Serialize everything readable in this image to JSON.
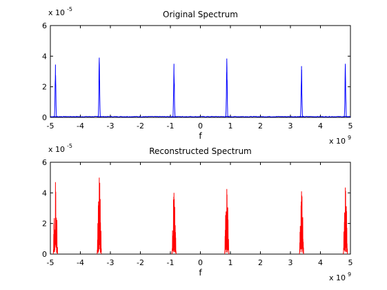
{
  "chart_data": [
    {
      "type": "line",
      "title": "Original Spectrum",
      "xlabel": "f",
      "ylabel": "",
      "x_multiplier": "x 10",
      "x_exponent": "9",
      "y_multiplier": "x 10",
      "y_exponent": "-5",
      "xlim": [
        -5,
        5
      ],
      "ylim": [
        0,
        6
      ],
      "x_ticks": [
        "-5",
        "-4",
        "-3",
        "-2",
        "-1",
        "0",
        "1",
        "2",
        "3",
        "4",
        "5"
      ],
      "y_ticks": [
        "0",
        "2",
        "4",
        "6"
      ],
      "grid": false,
      "line_color": "#0000ff",
      "baseline": 0.05,
      "peaks": [
        {
          "center": -4.83,
          "height": 3.45
        },
        {
          "center": -3.37,
          "height": 3.9
        },
        {
          "center": -0.88,
          "height": 3.5
        },
        {
          "center": 0.88,
          "height": 3.85
        },
        {
          "center": 3.37,
          "height": 3.35
        },
        {
          "center": 4.83,
          "height": 3.5
        }
      ]
    },
    {
      "type": "line",
      "title": "Reconstructed Spectrum",
      "xlabel": "f",
      "ylabel": "",
      "x_multiplier": "x 10",
      "x_exponent": "9",
      "y_multiplier": "x 10",
      "y_exponent": "-5",
      "xlim": [
        -5,
        5
      ],
      "ylim": [
        0,
        6
      ],
      "x_ticks": [
        "-5",
        "-4",
        "-3",
        "-2",
        "-1",
        "0",
        "1",
        "2",
        "3",
        "4",
        "5"
      ],
      "y_ticks": [
        "0",
        "2",
        "4",
        "6"
      ],
      "grid": false,
      "line_color": "#ff0000",
      "baseline": 0,
      "peaks": [
        {
          "center": -4.83,
          "height": 4.7
        },
        {
          "center": -3.37,
          "height": 5.0
        },
        {
          "center": -0.88,
          "height": 4.0
        },
        {
          "center": 0.88,
          "height": 4.25
        },
        {
          "center": 3.37,
          "height": 4.1
        },
        {
          "center": 4.83,
          "height": 4.35
        }
      ]
    }
  ]
}
